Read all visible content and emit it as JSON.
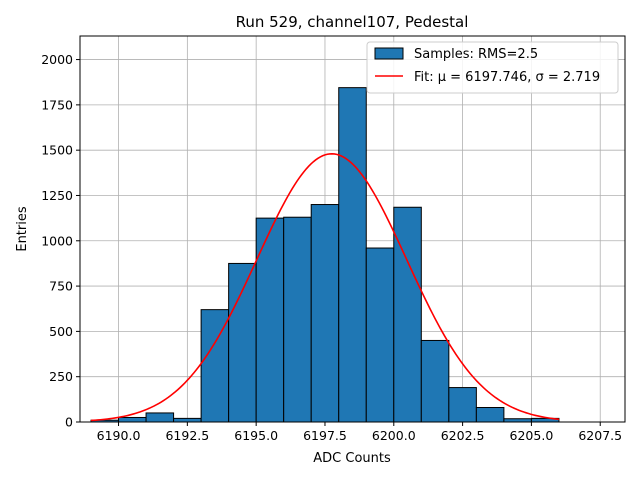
{
  "chart_data": {
    "type": "bar",
    "title": "Run 529, channel107, Pedestal",
    "xlabel": "ADC Counts",
    "ylabel": "Entries",
    "xlim": [
      6188.6,
      6208.4
    ],
    "ylim": [
      0,
      2130
    ],
    "grid": true,
    "legend_placement": "top-right",
    "xticks": [
      6190.0,
      6192.5,
      6195.0,
      6197.5,
      6200.0,
      6202.5,
      6205.0,
      6207.5
    ],
    "xtick_labels": [
      "6190.0",
      "6192.5",
      "6195.0",
      "6197.5",
      "6200.0",
      "6202.5",
      "6205.0",
      "6207.5"
    ],
    "yticks": [
      0,
      250,
      500,
      750,
      1000,
      1250,
      1500,
      1750,
      2000
    ],
    "ytick_labels": [
      "0",
      "250",
      "500",
      "750",
      "1000",
      "1250",
      "1500",
      "1750",
      "2000"
    ],
    "histogram": {
      "name": "Samples: RMS=2.5",
      "color": "#1f77b4",
      "edge_color": "#000000",
      "bins": [
        {
          "x0": 6189.0,
          "x1": 6190.0,
          "count": 10
        },
        {
          "x0": 6190.0,
          "x1": 6191.0,
          "count": 25
        },
        {
          "x0": 6191.0,
          "x1": 6192.0,
          "count": 50
        },
        {
          "x0": 6192.0,
          "x1": 6193.0,
          "count": 20
        },
        {
          "x0": 6193.0,
          "x1": 6194.0,
          "count": 620
        },
        {
          "x0": 6194.0,
          "x1": 6195.0,
          "count": 875
        },
        {
          "x0": 6195.0,
          "x1": 6196.0,
          "count": 1125
        },
        {
          "x0": 6196.0,
          "x1": 6197.0,
          "count": 1130
        },
        {
          "x0": 6197.0,
          "x1": 6198.0,
          "count": 1200
        },
        {
          "x0": 6198.0,
          "x1": 6199.0,
          "count": 1845
        },
        {
          "x0": 6199.0,
          "x1": 6200.0,
          "count": 960
        },
        {
          "x0": 6200.0,
          "x1": 6201.0,
          "count": 1185
        },
        {
          "x0": 6201.0,
          "x1": 6202.0,
          "count": 450
        },
        {
          "x0": 6202.0,
          "x1": 6203.0,
          "count": 190
        },
        {
          "x0": 6203.0,
          "x1": 6204.0,
          "count": 80
        },
        {
          "x0": 6204.0,
          "x1": 6205.0,
          "count": 18
        },
        {
          "x0": 6205.0,
          "x1": 6206.0,
          "count": 20
        }
      ]
    },
    "fit": {
      "label": "Fit: μ = 6197.746, σ = 2.719",
      "color": "#ff0000",
      "mu": 6197.746,
      "sigma": 2.719,
      "peak": 1480,
      "x_range": [
        6189.0,
        6206.0
      ]
    }
  }
}
